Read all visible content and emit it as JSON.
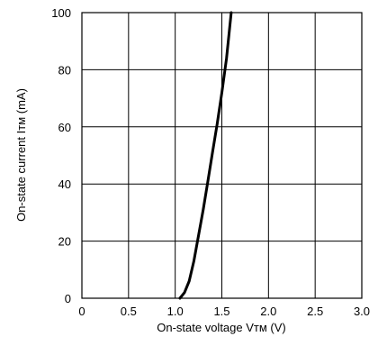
{
  "chart_data": {
    "type": "line",
    "title": "",
    "xlabel": "On-state voltage Vᴛᴍ (V)",
    "ylabel": "On-state current Iᴛᴍ (mA)",
    "xlim": [
      0,
      3.0
    ],
    "ylim": [
      0,
      100
    ],
    "x_ticks": [
      "0",
      "0.5",
      "1.0",
      "1.5",
      "2.0",
      "2.5",
      "3.0"
    ],
    "y_ticks": [
      "0",
      "20",
      "40",
      "60",
      "80",
      "100"
    ],
    "grid": true,
    "legend": "none",
    "series": [
      {
        "color": "#000000",
        "x": [
          1.05,
          1.1,
          1.15,
          1.2,
          1.25,
          1.3,
          1.35,
          1.4,
          1.45,
          1.5,
          1.55,
          1.6
        ],
        "y": [
          0,
          2,
          6,
          13,
          22,
          31,
          41,
          51,
          61,
          72,
          84,
          100
        ]
      }
    ]
  }
}
